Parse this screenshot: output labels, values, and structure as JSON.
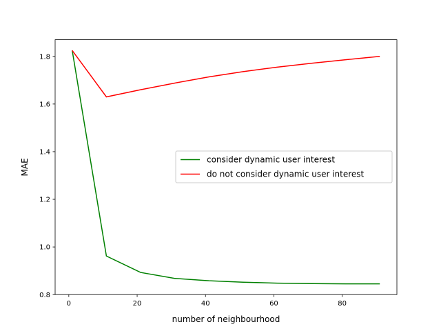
{
  "chart_data": {
    "type": "line",
    "title": "",
    "xlabel": "number of neighbourhood",
    "ylabel": "MAE",
    "xlim": [
      -4,
      96
    ],
    "ylim": [
      0.8,
      1.87
    ],
    "xticks": [
      0,
      20,
      40,
      60,
      80
    ],
    "xtick_labels": [
      "0",
      "20",
      "40",
      "60",
      "80"
    ],
    "yticks": [
      0.8,
      1.0,
      1.2,
      1.4,
      1.6,
      1.8
    ],
    "ytick_labels": [
      "0.8",
      "1.0",
      "1.2",
      "1.4",
      "1.6",
      "1.8"
    ],
    "grid": false,
    "legend_position": "center-right",
    "x": [
      1,
      11,
      21,
      31,
      41,
      51,
      61,
      71,
      81,
      91
    ],
    "series": [
      {
        "name": "consider dynamic user interest",
        "color": "#008000",
        "values": [
          1.825,
          0.962,
          0.893,
          0.868,
          0.858,
          0.852,
          0.848,
          0.846,
          0.845,
          0.845
        ]
      },
      {
        "name": "do not consider dynamic user interest",
        "color": "#ff0000",
        "values": [
          1.825,
          1.63,
          1.66,
          1.688,
          1.714,
          1.736,
          1.755,
          1.771,
          1.786,
          1.8
        ]
      }
    ]
  }
}
